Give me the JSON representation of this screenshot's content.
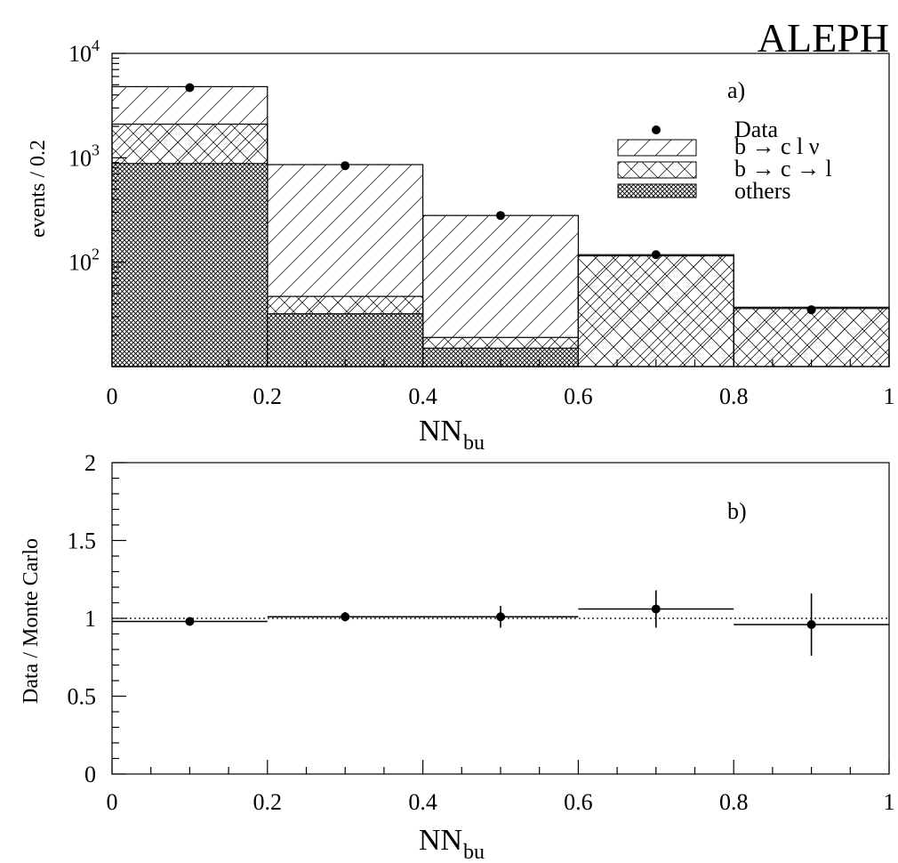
{
  "experiment_label": "ALEPH",
  "chart_data": [
    {
      "panel_label": "a)",
      "type": "bar",
      "subtype": "stacked-histogram",
      "ylabel": "events / 0.2",
      "xlabel_main": "NN",
      "xlabel_sub": "bu",
      "xlim": [
        0,
        1
      ],
      "ylim": [
        10,
        10000
      ],
      "yscale": "log",
      "x_ticks": [
        "0",
        "0.2",
        "0.4",
        "0.6",
        "0.8",
        "1"
      ],
      "y_ticks": [
        {
          "base": "10",
          "exp": "2"
        },
        {
          "base": "10",
          "exp": "3"
        },
        {
          "base": "10",
          "exp": "4"
        }
      ],
      "bin_edges": [
        0,
        0.2,
        0.4,
        0.6,
        0.8,
        1.0
      ],
      "series": [
        {
          "name": "others",
          "pattern": "dense-crosshatch",
          "values": [
            880,
            32,
            15,
            10,
            10
          ]
        },
        {
          "name": "b → c → l",
          "pattern": "crosshatch",
          "values": [
            2100,
            47,
            19,
            115,
            36
          ]
        },
        {
          "name": "b → c l ν",
          "pattern": "diagonal-hatch",
          "values": [
            4800,
            860,
            280,
            118,
            37
          ]
        }
      ],
      "data_points": {
        "name": "Data",
        "x": [
          0.1,
          0.3,
          0.5,
          0.7,
          0.9
        ],
        "y": [
          4700,
          840,
          280,
          118,
          35
        ]
      },
      "legend": [
        "Data",
        "b → c l ν",
        "b → c → l",
        "others"
      ],
      "legend_position": "top-right"
    },
    {
      "panel_label": "b)",
      "type": "scatter",
      "subtype": "ratio-with-errorbars",
      "ylabel": "Data / Monte Carlo",
      "xlabel_main": "NN",
      "xlabel_sub": "bu",
      "xlim": [
        0,
        1
      ],
      "ylim": [
        0,
        2
      ],
      "x_ticks": [
        "0",
        "0.2",
        "0.4",
        "0.6",
        "0.8",
        "1"
      ],
      "y_ticks": [
        "0",
        "0.5",
        "1",
        "1.5",
        "2"
      ],
      "reference_line": 1.0,
      "x": [
        0.1,
        0.3,
        0.5,
        0.7,
        0.9
      ],
      "x_halfwidth": 0.1,
      "y": [
        0.98,
        1.01,
        1.01,
        1.06,
        0.96
      ],
      "y_err": [
        0.01,
        0.03,
        0.07,
        0.12,
        0.2
      ]
    }
  ]
}
